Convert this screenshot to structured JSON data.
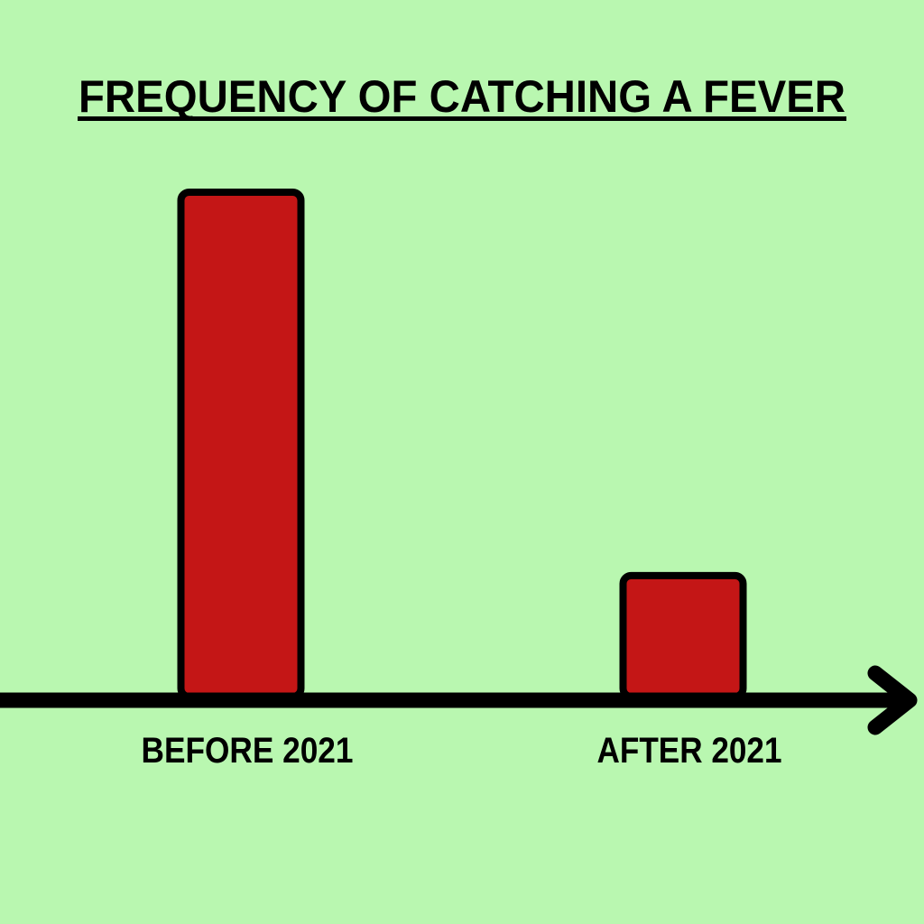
{
  "chart_data": {
    "type": "bar",
    "title": "FREQUENCY OF CATCHING A FEVER",
    "categories": [
      "BEFORE 2021",
      "AFTER 2021"
    ],
    "values": [
      100,
      24
    ],
    "color": "#c41616"
  }
}
